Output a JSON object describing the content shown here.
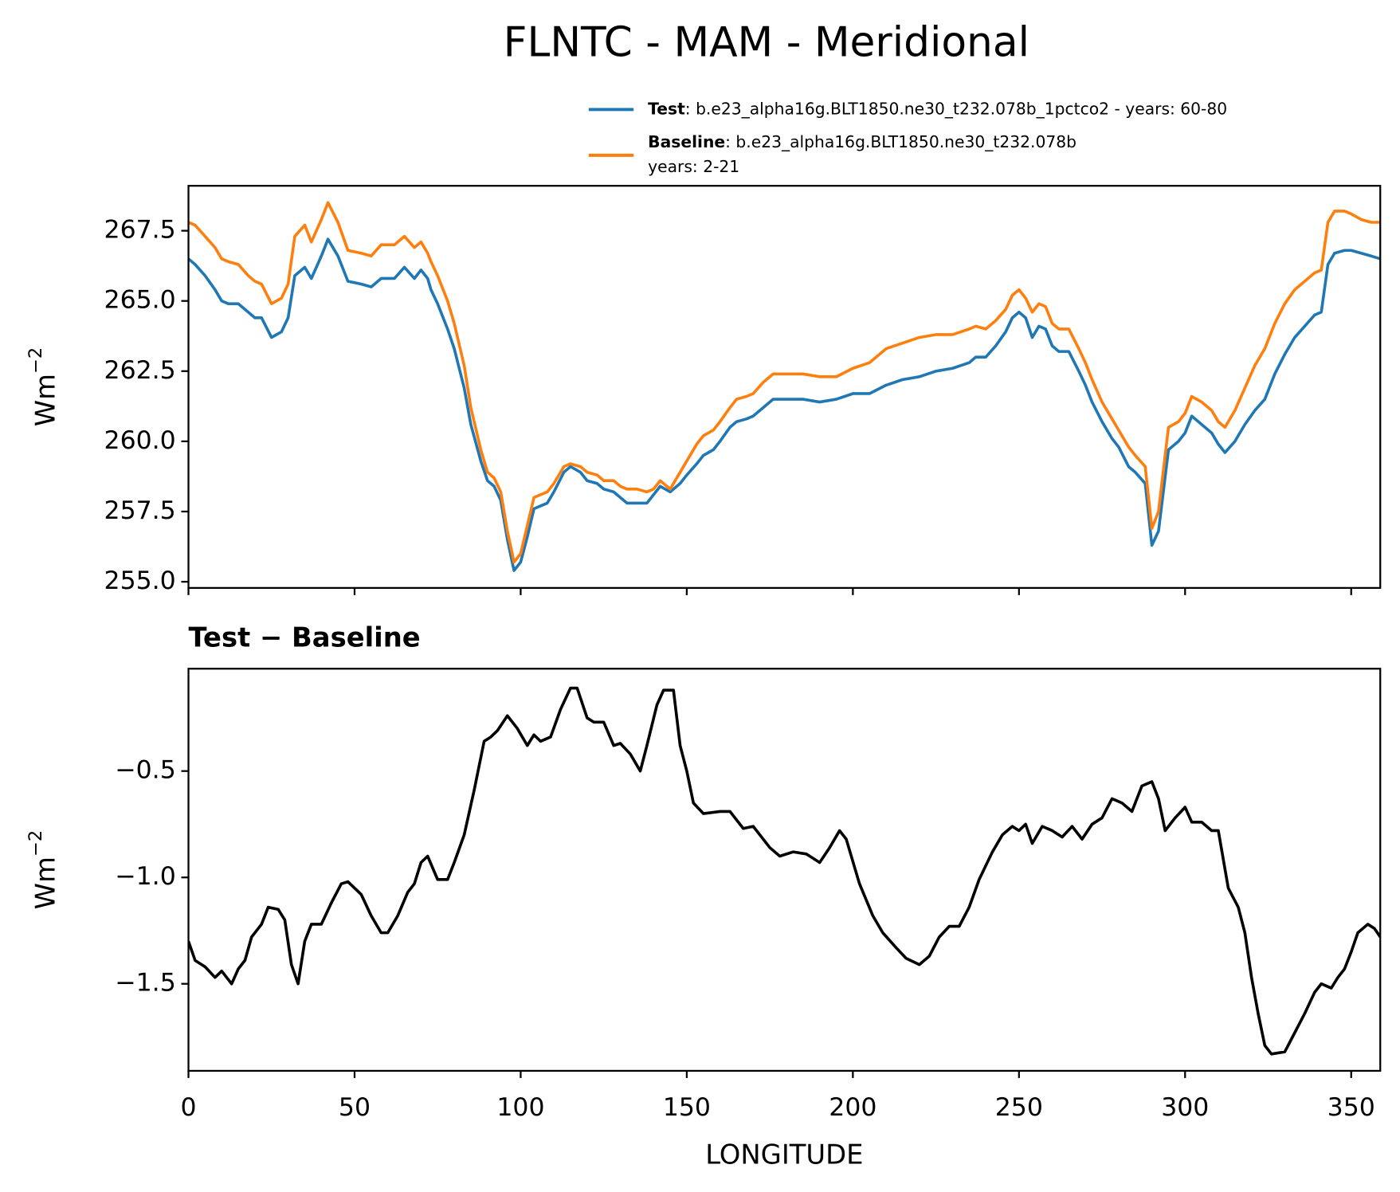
{
  "chart_data": [
    {
      "type": "line",
      "title": "FLNTC - MAM - Meridional",
      "ylabel": "Wm",
      "ylabel_sup": "−2",
      "xlim": [
        0,
        358.75
      ],
      "ylim": [
        254.78,
        269.1
      ],
      "yticks": [
        {
          "value": 255,
          "label": "255.0"
        },
        {
          "value": 257.5,
          "label": "257.5"
        },
        {
          "value": 260,
          "label": "260.0"
        },
        {
          "value": 262.5,
          "label": "262.5"
        },
        {
          "value": 265,
          "label": "265.0"
        },
        {
          "value": 267.5,
          "label": "267.5"
        }
      ],
      "x": [
        0,
        2,
        5,
        8,
        10,
        12,
        15,
        18,
        20,
        22,
        25,
        28,
        30,
        32,
        35,
        37,
        40,
        42,
        45,
        48,
        52,
        55,
        58,
        62,
        65,
        68,
        70,
        72,
        73,
        75,
        78,
        80,
        83,
        85,
        88,
        90,
        92,
        94,
        96,
        98,
        100,
        102,
        104,
        106,
        108,
        110,
        113,
        115,
        118,
        120,
        123,
        125,
        128,
        130,
        132,
        135,
        138,
        140,
        142,
        145,
        148,
        150,
        153,
        155,
        158,
        160,
        163,
        165,
        168,
        170,
        173,
        176,
        180,
        185,
        190,
        195,
        200,
        205,
        210,
        215,
        220,
        225,
        230,
        235,
        237,
        240,
        243,
        246,
        248,
        250,
        252,
        254,
        256,
        258,
        260,
        262,
        265,
        268,
        270,
        272,
        275,
        278,
        280,
        283,
        285,
        288,
        290,
        292,
        295,
        298,
        300,
        302,
        305,
        308,
        310,
        312,
        315,
        318,
        321,
        324,
        327,
        330,
        333,
        336,
        339,
        341,
        343,
        345,
        348,
        350,
        353,
        356,
        358.75
      ],
      "series": [
        {
          "name": "Test",
          "description": [
            ": b.e23_alpha16g.BLT1850.ne30_t232.078b_1pctco2 - years: 60-80"
          ],
          "color": "#1f77b4",
          "values": [
            266.5,
            266.3,
            265.9,
            265.4,
            265.0,
            264.9,
            264.9,
            264.6,
            264.4,
            264.4,
            263.7,
            263.9,
            264.4,
            265.9,
            266.2,
            265.8,
            266.6,
            267.2,
            266.6,
            265.7,
            265.6,
            265.5,
            265.8,
            265.8,
            266.2,
            265.8,
            266.1,
            265.8,
            265.4,
            264.9,
            264.0,
            263.3,
            261.9,
            260.6,
            259.3,
            258.6,
            258.4,
            257.9,
            256.5,
            255.4,
            255.7,
            256.6,
            257.6,
            257.7,
            257.8,
            258.2,
            258.9,
            259.1,
            258.9,
            258.6,
            258.5,
            258.3,
            258.2,
            258.0,
            257.8,
            257.8,
            257.8,
            258.1,
            258.4,
            258.2,
            258.5,
            258.8,
            259.2,
            259.5,
            259.7,
            260.0,
            260.5,
            260.7,
            260.8,
            260.9,
            261.2,
            261.5,
            261.5,
            261.5,
            261.4,
            261.5,
            261.7,
            261.7,
            262.0,
            262.2,
            262.3,
            262.5,
            262.6,
            262.8,
            263.0,
            263.0,
            263.4,
            263.9,
            264.4,
            264.6,
            264.4,
            263.7,
            264.1,
            264.0,
            263.4,
            263.2,
            263.2,
            262.5,
            262.0,
            261.4,
            260.7,
            260.1,
            259.8,
            259.1,
            258.9,
            258.5,
            256.3,
            256.8,
            259.7,
            260.0,
            260.3,
            260.9,
            260.6,
            260.3,
            259.9,
            259.6,
            260.0,
            260.6,
            261.1,
            261.5,
            262.4,
            263.1,
            263.7,
            264.1,
            264.5,
            264.6,
            266.3,
            266.7,
            266.8,
            266.8,
            266.7,
            266.6,
            266.5
          ]
        },
        {
          "name": "Baseline",
          "description": [
            ": b.e23_alpha16g.BLT1850.ne30_t232.078b",
            "years: 2-21"
          ],
          "color": "#ff7f0e",
          "values": [
            267.8,
            267.7,
            267.3,
            266.9,
            266.5,
            266.4,
            266.3,
            265.9,
            265.7,
            265.6,
            264.9,
            265.1,
            265.6,
            267.3,
            267.7,
            267.1,
            267.9,
            268.5,
            267.8,
            266.8,
            266.7,
            266.6,
            267.0,
            267.0,
            267.3,
            266.9,
            267.1,
            266.7,
            266.4,
            265.9,
            265.0,
            264.2,
            262.7,
            261.2,
            259.7,
            258.9,
            258.7,
            258.2,
            256.8,
            255.7,
            256.0,
            257.0,
            258.0,
            258.1,
            258.2,
            258.5,
            259.1,
            259.2,
            259.1,
            258.9,
            258.8,
            258.6,
            258.6,
            258.4,
            258.3,
            258.3,
            258.2,
            258.3,
            258.6,
            258.3,
            258.9,
            259.3,
            259.9,
            260.2,
            260.4,
            260.7,
            261.2,
            261.5,
            261.6,
            261.7,
            262.1,
            262.4,
            262.4,
            262.4,
            262.3,
            262.3,
            262.6,
            262.8,
            263.3,
            263.5,
            263.7,
            263.8,
            263.8,
            264.0,
            264.1,
            264.0,
            264.3,
            264.7,
            265.2,
            265.4,
            265.1,
            264.6,
            264.9,
            264.8,
            264.2,
            264.0,
            264.0,
            263.3,
            262.8,
            262.2,
            261.4,
            260.8,
            260.4,
            259.8,
            259.5,
            259.1,
            256.9,
            257.5,
            260.5,
            260.7,
            261.0,
            261.6,
            261.4,
            261.1,
            260.7,
            260.5,
            261.1,
            261.9,
            262.7,
            263.3,
            264.2,
            264.9,
            265.4,
            265.7,
            266.0,
            266.1,
            267.8,
            268.2,
            268.2,
            268.1,
            267.9,
            267.8,
            267.8
          ]
        }
      ]
    },
    {
      "type": "line",
      "title": "Test − Baseline",
      "ylabel": "Wm",
      "ylabel_sup": "−2",
      "xlabel": "LONGITUDE",
      "color": "#000000",
      "xlim": [
        0,
        358.75
      ],
      "ylim": [
        -1.909,
        -0.019
      ],
      "xticks": [
        0,
        50,
        100,
        150,
        200,
        250,
        300,
        350
      ],
      "yticks": [
        {
          "value": -1.5,
          "label": "−1.5"
        },
        {
          "value": -1.0,
          "label": "−1.0"
        },
        {
          "value": -0.5,
          "label": "−0.5"
        }
      ],
      "x": [
        0,
        2,
        5,
        8,
        10,
        13,
        15,
        17,
        19,
        22,
        24,
        27,
        29,
        31,
        33,
        35,
        37,
        40,
        43,
        46,
        48,
        52,
        55,
        58,
        60,
        63,
        66,
        68,
        70,
        72,
        75,
        78,
        80,
        83,
        86,
        89,
        91,
        93,
        96,
        99,
        102,
        104,
        106,
        109,
        112,
        115,
        117,
        120,
        122,
        125,
        128,
        130,
        133,
        136,
        138,
        141,
        143,
        146,
        148,
        150,
        152,
        155,
        160,
        163,
        167,
        170,
        175,
        178,
        182,
        186,
        190,
        193,
        196,
        198,
        202,
        206,
        209,
        213,
        216,
        220,
        223,
        226,
        229,
        232,
        235,
        238,
        242,
        245,
        248,
        250,
        252,
        254,
        257,
        260,
        263,
        266,
        269,
        272,
        275,
        278,
        281,
        284,
        287,
        290,
        292,
        294,
        297,
        300,
        302,
        305,
        308,
        310,
        313,
        316,
        318,
        320,
        322,
        324,
        326,
        330,
        333,
        336,
        339,
        341,
        344,
        346,
        348,
        350,
        352,
        355,
        357,
        358.75
      ],
      "values": [
        -1.3,
        -1.39,
        -1.42,
        -1.47,
        -1.44,
        -1.5,
        -1.43,
        -1.39,
        -1.28,
        -1.22,
        -1.14,
        -1.15,
        -1.2,
        -1.41,
        -1.5,
        -1.3,
        -1.22,
        -1.22,
        -1.12,
        -1.03,
        -1.02,
        -1.08,
        -1.18,
        -1.26,
        -1.26,
        -1.18,
        -1.07,
        -1.03,
        -0.93,
        -0.9,
        -1.01,
        -1.01,
        -0.93,
        -0.8,
        -0.59,
        -0.36,
        -0.34,
        -0.31,
        -0.24,
        -0.3,
        -0.38,
        -0.33,
        -0.36,
        -0.34,
        -0.21,
        -0.11,
        -0.11,
        -0.25,
        -0.27,
        -0.27,
        -0.38,
        -0.37,
        -0.42,
        -0.5,
        -0.38,
        -0.19,
        -0.12,
        -0.12,
        -0.38,
        -0.5,
        -0.65,
        -0.7,
        -0.69,
        -0.69,
        -0.77,
        -0.76,
        -0.86,
        -0.9,
        -0.88,
        -0.89,
        -0.93,
        -0.86,
        -0.78,
        -0.82,
        -1.03,
        -1.18,
        -1.26,
        -1.33,
        -1.38,
        -1.41,
        -1.37,
        -1.28,
        -1.23,
        -1.23,
        -1.14,
        -1.01,
        -0.88,
        -0.8,
        -0.76,
        -0.78,
        -0.75,
        -0.84,
        -0.76,
        -0.78,
        -0.81,
        -0.76,
        -0.82,
        -0.75,
        -0.72,
        -0.63,
        -0.65,
        -0.69,
        -0.57,
        -0.55,
        -0.63,
        -0.78,
        -0.72,
        -0.67,
        -0.74,
        -0.74,
        -0.78,
        -0.78,
        -1.05,
        -1.14,
        -1.26,
        -1.47,
        -1.64,
        -1.79,
        -1.83,
        -1.82,
        -1.73,
        -1.64,
        -1.54,
        -1.5,
        -1.52,
        -1.47,
        -1.43,
        -1.35,
        -1.26,
        -1.22,
        -1.24,
        -1.28
      ]
    }
  ]
}
